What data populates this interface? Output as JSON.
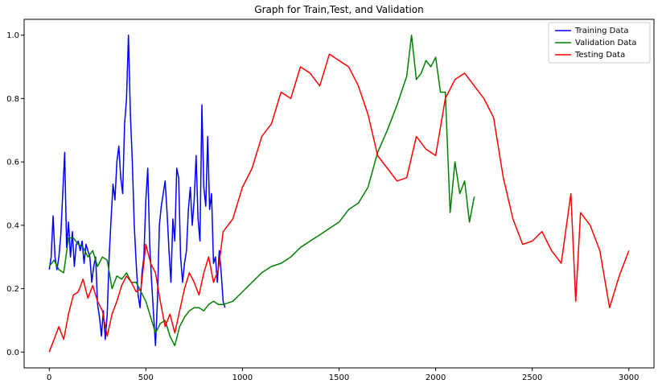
{
  "chart_data": {
    "type": "line",
    "title": "Graph for Train,Test, and Validation",
    "xlabel": "",
    "ylabel": "",
    "xlim": [
      -130,
      3130
    ],
    "ylim": [
      -0.05,
      1.05
    ],
    "x_ticks": [
      0,
      500,
      1000,
      1500,
      2000,
      2500,
      3000
    ],
    "y_ticks": [
      0.0,
      0.2,
      0.4,
      0.6,
      0.8,
      1.0
    ],
    "grid": false,
    "legend_position": "top-right",
    "series": [
      {
        "name": "Training Data",
        "color": "#0000ff",
        "x": [
          0,
          10,
          20,
          30,
          40,
          50,
          60,
          70,
          80,
          90,
          100,
          110,
          120,
          130,
          140,
          150,
          160,
          170,
          180,
          190,
          200,
          210,
          220,
          230,
          240,
          250,
          260,
          270,
          280,
          290,
          300,
          310,
          320,
          330,
          340,
          350,
          360,
          370,
          380,
          390,
          400,
          410,
          420,
          430,
          440,
          450,
          460,
          470,
          480,
          490,
          500,
          510,
          520,
          530,
          540,
          550,
          560,
          570,
          580,
          590,
          600,
          610,
          620,
          630,
          640,
          650,
          660,
          670,
          680,
          690,
          700,
          710,
          720,
          730,
          740,
          750,
          760,
          770,
          780,
          790,
          800,
          810,
          820,
          830,
          840,
          850,
          860,
          870,
          880,
          890,
          900,
          910
        ],
        "y": [
          0.26,
          0.3,
          0.43,
          0.3,
          0.26,
          0.3,
          0.37,
          0.5,
          0.63,
          0.33,
          0.41,
          0.3,
          0.38,
          0.27,
          0.34,
          0.35,
          0.32,
          0.35,
          0.28,
          0.34,
          0.32,
          0.3,
          0.22,
          0.27,
          0.3,
          0.15,
          0.11,
          0.05,
          0.13,
          0.04,
          0.12,
          0.3,
          0.42,
          0.53,
          0.48,
          0.6,
          0.65,
          0.55,
          0.5,
          0.72,
          0.8,
          1.0,
          0.75,
          0.6,
          0.4,
          0.28,
          0.18,
          0.14,
          0.25,
          0.3,
          0.48,
          0.58,
          0.34,
          0.22,
          0.12,
          0.02,
          0.16,
          0.4,
          0.46,
          0.5,
          0.54,
          0.44,
          0.32,
          0.22,
          0.42,
          0.35,
          0.58,
          0.55,
          0.3,
          0.22,
          0.28,
          0.32,
          0.45,
          0.52,
          0.4,
          0.48,
          0.62,
          0.42,
          0.35,
          0.78,
          0.52,
          0.46,
          0.68,
          0.45,
          0.5,
          0.28,
          0.3,
          0.22,
          0.32,
          0.25,
          0.16,
          0.14
        ]
      },
      {
        "name": "Validation Data",
        "color": "#008000",
        "x": [
          0,
          25,
          50,
          75,
          100,
          125,
          150,
          175,
          200,
          225,
          250,
          275,
          300,
          325,
          350,
          375,
          400,
          425,
          450,
          475,
          500,
          525,
          550,
          575,
          600,
          625,
          650,
          675,
          700,
          725,
          750,
          775,
          800,
          825,
          850,
          875,
          900,
          950,
          1000,
          1050,
          1100,
          1150,
          1200,
          1250,
          1300,
          1350,
          1400,
          1450,
          1500,
          1550,
          1600,
          1650,
          1700,
          1750,
          1800,
          1850,
          1875,
          1900,
          1925,
          1950,
          1975,
          2000,
          2025,
          2050,
          2075,
          2100,
          2125,
          2150,
          2175,
          2200
        ],
        "y": [
          0.27,
          0.29,
          0.26,
          0.25,
          0.36,
          0.36,
          0.34,
          0.33,
          0.3,
          0.32,
          0.27,
          0.3,
          0.29,
          0.2,
          0.24,
          0.23,
          0.25,
          0.22,
          0.22,
          0.19,
          0.16,
          0.11,
          0.06,
          0.09,
          0.1,
          0.05,
          0.02,
          0.08,
          0.11,
          0.13,
          0.14,
          0.14,
          0.13,
          0.15,
          0.16,
          0.15,
          0.15,
          0.16,
          0.19,
          0.22,
          0.25,
          0.27,
          0.28,
          0.3,
          0.33,
          0.35,
          0.37,
          0.39,
          0.41,
          0.45,
          0.47,
          0.52,
          0.63,
          0.7,
          0.78,
          0.87,
          1.0,
          0.86,
          0.88,
          0.92,
          0.9,
          0.93,
          0.82,
          0.82,
          0.44,
          0.6,
          0.5,
          0.54,
          0.41,
          0.49
        ]
      },
      {
        "name": "Testing Data",
        "color": "#ff0000",
        "x": [
          0,
          25,
          50,
          75,
          100,
          125,
          150,
          175,
          200,
          225,
          250,
          275,
          300,
          325,
          350,
          375,
          400,
          425,
          450,
          475,
          500,
          525,
          550,
          575,
          600,
          625,
          650,
          675,
          700,
          725,
          750,
          775,
          800,
          825,
          850,
          875,
          900,
          950,
          1000,
          1050,
          1100,
          1150,
          1200,
          1250,
          1300,
          1350,
          1400,
          1450,
          1500,
          1550,
          1600,
          1650,
          1700,
          1750,
          1800,
          1850,
          1900,
          1950,
          2000,
          2050,
          2100,
          2150,
          2200,
          2250,
          2300,
          2350,
          2400,
          2450,
          2500,
          2550,
          2600,
          2650,
          2700,
          2725,
          2750,
          2800,
          2850,
          2900,
          2950,
          3000
        ],
        "y": [
          0.0,
          0.04,
          0.08,
          0.04,
          0.12,
          0.18,
          0.19,
          0.23,
          0.17,
          0.21,
          0.16,
          0.13,
          0.05,
          0.12,
          0.16,
          0.21,
          0.24,
          0.22,
          0.19,
          0.2,
          0.34,
          0.28,
          0.25,
          0.16,
          0.08,
          0.12,
          0.06,
          0.13,
          0.2,
          0.25,
          0.22,
          0.18,
          0.25,
          0.3,
          0.22,
          0.26,
          0.38,
          0.42,
          0.52,
          0.58,
          0.68,
          0.72,
          0.82,
          0.8,
          0.9,
          0.88,
          0.84,
          0.94,
          0.92,
          0.9,
          0.84,
          0.75,
          0.62,
          0.58,
          0.54,
          0.55,
          0.68,
          0.64,
          0.62,
          0.8,
          0.86,
          0.88,
          0.84,
          0.8,
          0.74,
          0.55,
          0.42,
          0.34,
          0.35,
          0.38,
          0.32,
          0.28,
          0.5,
          0.16,
          0.44,
          0.4,
          0.32,
          0.14,
          0.24,
          0.32
        ]
      }
    ]
  }
}
